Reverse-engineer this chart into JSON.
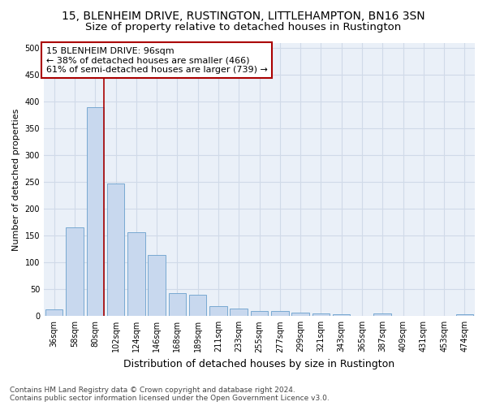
{
  "title1": "15, BLENHEIM DRIVE, RUSTINGTON, LITTLEHAMPTON, BN16 3SN",
  "title2": "Size of property relative to detached houses in Rustington",
  "xlabel": "Distribution of detached houses by size in Rustington",
  "ylabel": "Number of detached properties",
  "categories": [
    "36sqm",
    "58sqm",
    "80sqm",
    "102sqm",
    "124sqm",
    "146sqm",
    "168sqm",
    "189sqm",
    "211sqm",
    "233sqm",
    "255sqm",
    "277sqm",
    "299sqm",
    "321sqm",
    "343sqm",
    "365sqm",
    "387sqm",
    "409sqm",
    "431sqm",
    "453sqm",
    "474sqm"
  ],
  "values": [
    12,
    165,
    390,
    248,
    157,
    114,
    43,
    40,
    18,
    14,
    9,
    9,
    6,
    5,
    4,
    0,
    5,
    0,
    0,
    0,
    4
  ],
  "bar_color": "#c8d8ee",
  "bar_edge_color": "#6aa0cc",
  "vline_color": "#aa0000",
  "vline_x_index": 2,
  "annotation_text": "15 BLENHEIM DRIVE: 96sqm\n← 38% of detached houses are smaller (466)\n61% of semi-detached houses are larger (739) →",
  "annotation_box_facecolor": "#ffffff",
  "annotation_box_edgecolor": "#aa0000",
  "ylim": [
    0,
    510
  ],
  "yticks": [
    0,
    50,
    100,
    150,
    200,
    250,
    300,
    350,
    400,
    450,
    500
  ],
  "footnote": "Contains HM Land Registry data © Crown copyright and database right 2024.\nContains public sector information licensed under the Open Government Licence v3.0.",
  "fig_facecolor": "#ffffff",
  "ax_facecolor": "#eaf0f8",
  "grid_color": "#d0dae8",
  "title1_fontsize": 10,
  "title2_fontsize": 9.5,
  "xlabel_fontsize": 9,
  "ylabel_fontsize": 8,
  "tick_fontsize": 7,
  "annotation_fontsize": 8,
  "footnote_fontsize": 6.5
}
